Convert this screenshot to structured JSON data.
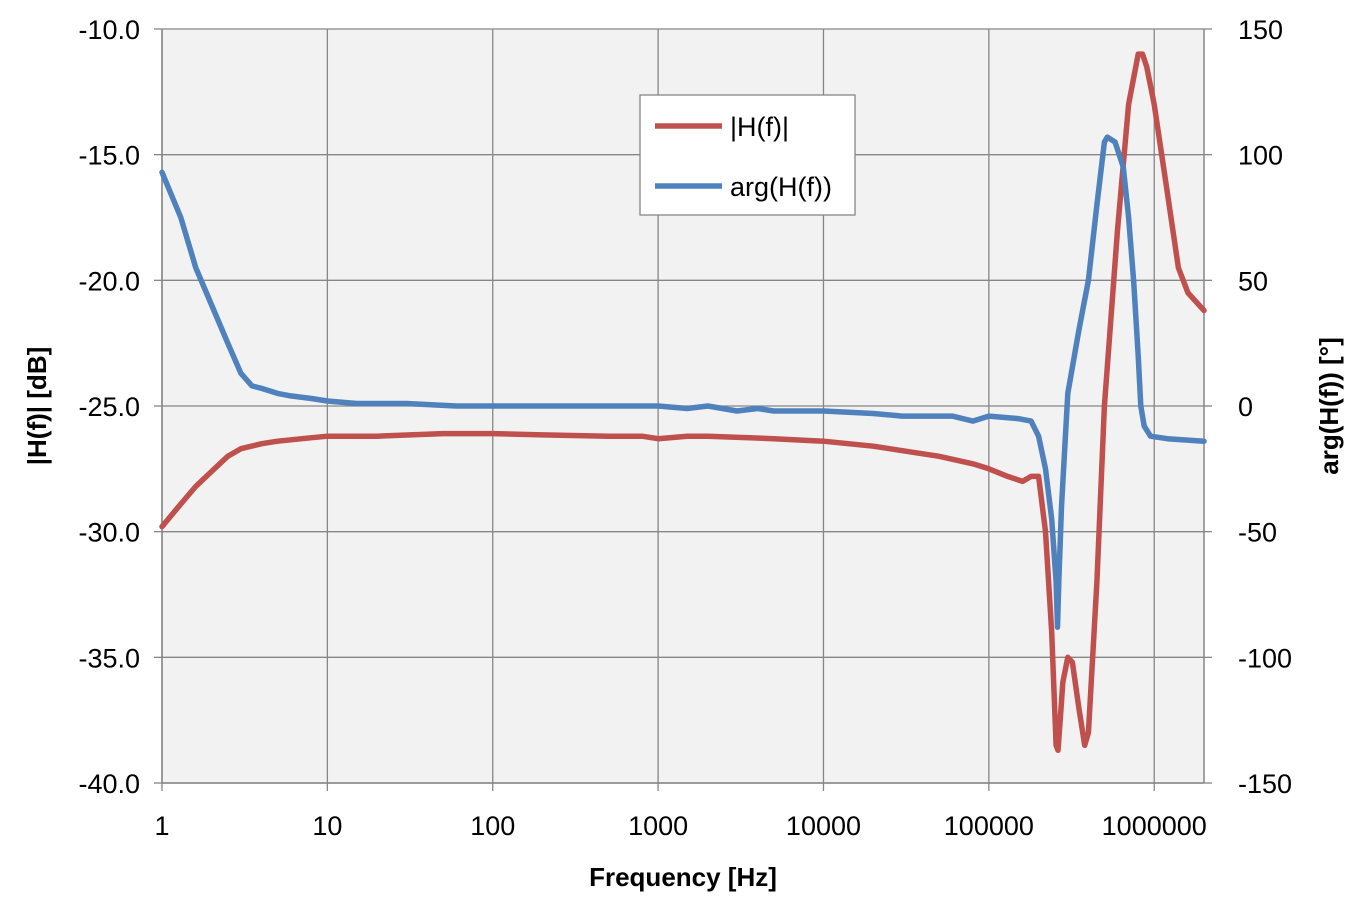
{
  "chart_data": {
    "type": "line",
    "title": "",
    "xlabel": "Frequency [Hz]",
    "ylabel_left": "|H(f)| [dB]",
    "ylabel_right": "arg(H(f)) [°]",
    "x_scale": "log",
    "xlim": [
      1,
      2000000
    ],
    "ylim_left": [
      -40,
      -10
    ],
    "ylim_right": [
      -150,
      150
    ],
    "grid": true,
    "legend_position": "top-center",
    "x_ticks": [
      1,
      10,
      100,
      1000,
      10000,
      100000,
      1000000
    ],
    "x_tick_labels": [
      "1",
      "10",
      "100",
      "1000",
      "10000",
      "100000",
      "1000000"
    ],
    "y_left_ticks": [
      -10,
      -15,
      -20,
      -25,
      -30,
      -35,
      -40
    ],
    "y_left_tick_labels": [
      "-10.0",
      "-15.0",
      "-20.0",
      "-25.0",
      "-30.0",
      "-35.0",
      "-40.0"
    ],
    "y_right_ticks": [
      150,
      100,
      50,
      0,
      -50,
      -100,
      -150
    ],
    "y_right_tick_labels": [
      "150",
      "100",
      "50",
      "0",
      "-50",
      "-100",
      "-150"
    ],
    "colors": {
      "magnitude": "#c0504d",
      "phase": "#4f81bd",
      "plot_bg": "#f2f2f2",
      "grid": "#868686"
    },
    "series": [
      {
        "name": "|H(f)|",
        "axis": "left",
        "x": [
          1,
          1.3,
          1.6,
          2,
          2.5,
          3,
          4,
          5,
          7,
          10,
          20,
          50,
          100,
          200,
          500,
          800,
          1000,
          1500,
          2000,
          5000,
          10000,
          20000,
          50000,
          80000,
          100000,
          130000,
          160000,
          180000,
          200000,
          220000,
          240000,
          255000,
          262000,
          270000,
          280000,
          300000,
          320000,
          350000,
          380000,
          400000,
          450000,
          500000,
          600000,
          700000,
          800000,
          850000,
          900000,
          1000000,
          1200000,
          1400000,
          1600000,
          2000000
        ],
        "values": [
          -29.8,
          -28.9,
          -28.2,
          -27.6,
          -27.0,
          -26.7,
          -26.5,
          -26.4,
          -26.3,
          -26.2,
          -26.2,
          -26.1,
          -26.1,
          -26.15,
          -26.2,
          -26.2,
          -26.3,
          -26.2,
          -26.2,
          -26.3,
          -26.4,
          -26.6,
          -27.0,
          -27.3,
          -27.5,
          -27.8,
          -28.0,
          -27.8,
          -27.8,
          -30.0,
          -34.0,
          -38.5,
          -38.7,
          -37.5,
          -36.0,
          -35.0,
          -35.2,
          -37.0,
          -38.5,
          -38.0,
          -32.0,
          -25.0,
          -18.0,
          -13.0,
          -11.0,
          -11.0,
          -11.5,
          -13.0,
          -16.5,
          -19.5,
          -20.5,
          -21.2
        ]
      },
      {
        "name": "arg(H(f))",
        "axis": "right",
        "x": [
          1,
          1.3,
          1.6,
          2,
          2.5,
          3,
          3.5,
          4,
          5,
          6,
          8,
          10,
          15,
          30,
          60,
          100,
          300,
          1000,
          1500,
          2000,
          3000,
          4000,
          5000,
          10000,
          20000,
          30000,
          60000,
          80000,
          100000,
          150000,
          180000,
          200000,
          220000,
          240000,
          255000,
          260000,
          265000,
          275000,
          300000,
          350000,
          400000,
          450000,
          500000,
          520000,
          580000,
          650000,
          700000,
          750000,
          800000,
          830000,
          870000,
          950000,
          1200000,
          2000000
        ],
        "values": [
          93,
          75,
          55,
          40,
          25,
          13,
          8,
          7,
          5,
          4,
          3,
          2,
          1,
          1,
          0,
          0,
          0,
          0,
          -1,
          0,
          -2,
          -1,
          -2,
          -2,
          -3,
          -4,
          -4,
          -6,
          -4,
          -5,
          -6,
          -12,
          -25,
          -45,
          -70,
          -88,
          -70,
          -40,
          5,
          30,
          50,
          80,
          105,
          107,
          105,
          95,
          75,
          50,
          20,
          0,
          -8,
          -12,
          -13,
          -14
        ]
      }
    ]
  }
}
